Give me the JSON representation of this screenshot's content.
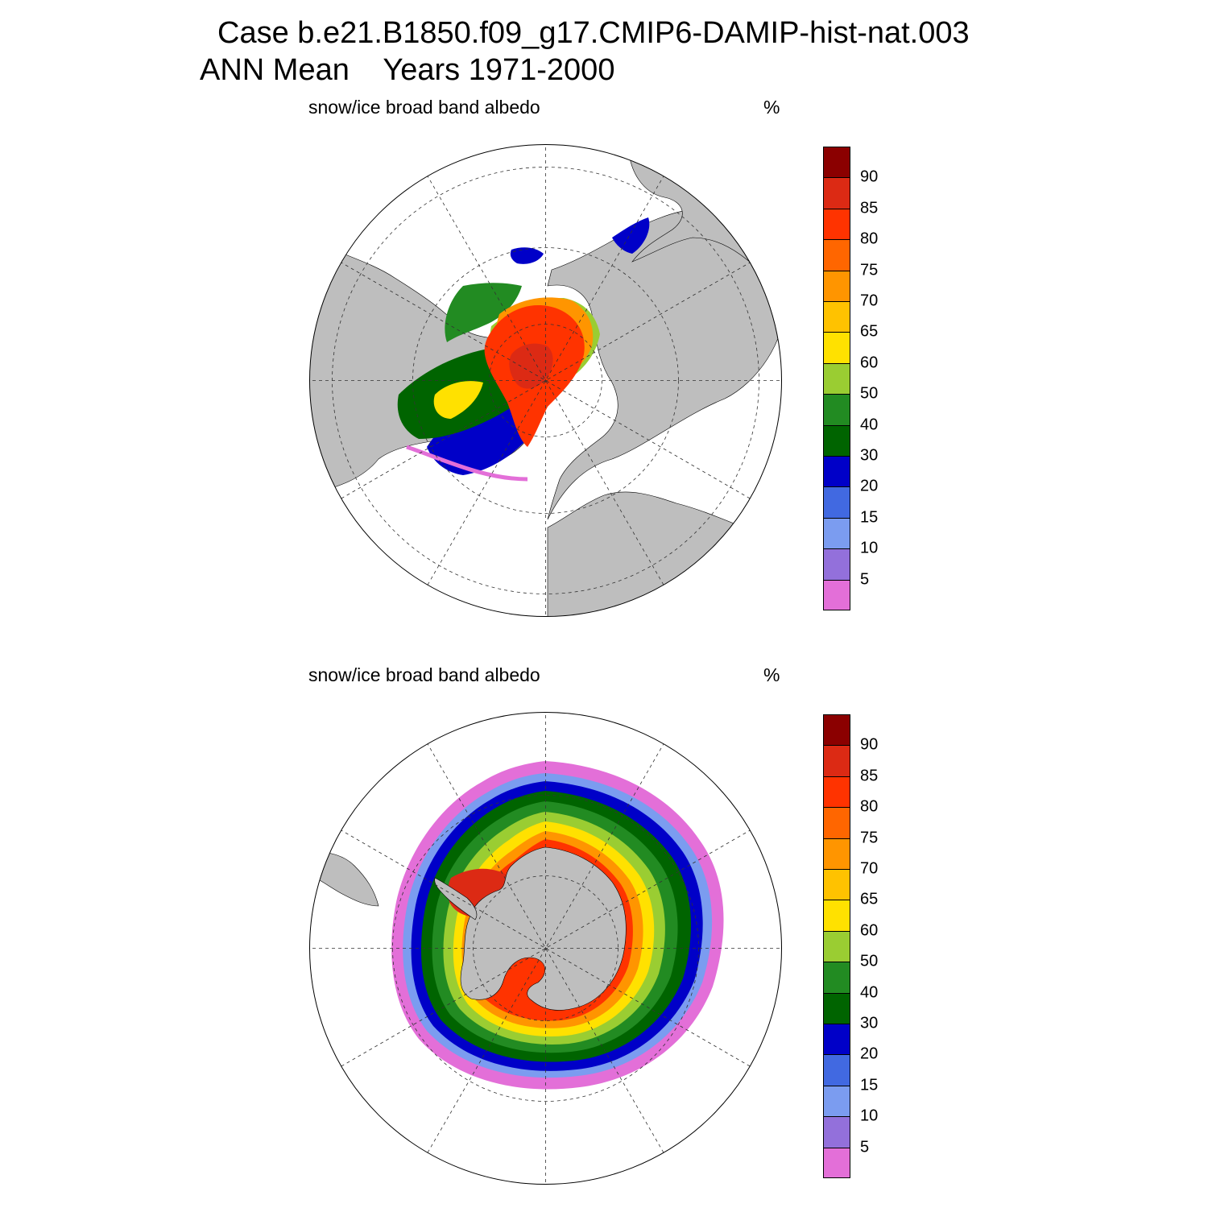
{
  "title": {
    "line1": "Case b.e21.B1850.f09_g17.CMIP6-DAMIP-hist-nat.003",
    "line2": "ANN Mean    Years 1971-2000"
  },
  "panels": [
    {
      "id": "north",
      "variable": "snow/ice broad band albedo",
      "units": "%"
    },
    {
      "id": "south",
      "variable": "snow/ice broad band albedo",
      "units": "%"
    }
  ],
  "colorbar": {
    "levels": [
      "5",
      "10",
      "15",
      "20",
      "30",
      "40",
      "50",
      "60",
      "65",
      "70",
      "75",
      "80",
      "85",
      "90"
    ],
    "colors": [
      "#e36fd8",
      "#9370db",
      "#7b9cf0",
      "#4169e1",
      "#0000c8",
      "#006400",
      "#228b22",
      "#9acd32",
      "#ffe100",
      "#ffc200",
      "#ff9500",
      "#ff6600",
      "#ff3300",
      "#dc2a14",
      "#8b0000"
    ]
  },
  "map_style": {
    "land_color": "#bebebe",
    "ocean_color": "#ffffff",
    "grid_style": "dashed"
  }
}
